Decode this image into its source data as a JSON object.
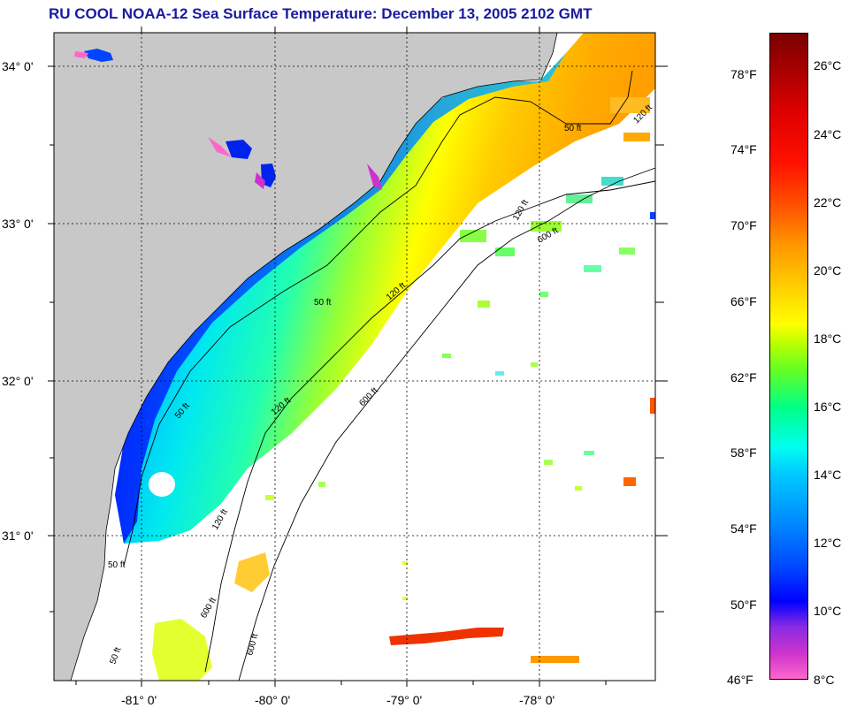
{
  "title": "RU COOL  NOAA-12  Sea Surface Temperature:  December 13, 2005 2102 GMT",
  "latitude_ticks": [
    "34° 0'",
    "33° 0'",
    "32° 0'",
    "31° 0'"
  ],
  "longitude_ticks": [
    "-81° 0'",
    "-80° 0'",
    "-79° 0'",
    "-78° 0'"
  ],
  "contour_labels": [
    "50 ft",
    "50 ft",
    "50 ft",
    "50 ft",
    "50 ft",
    "120 ft",
    "120 ft",
    "120 ft",
    "120 ft",
    "120 ft",
    "600 ft",
    "600 ft",
    "600 ft",
    "600 ft"
  ],
  "colorbar": {
    "fahrenheit": [
      "78°F",
      "74°F",
      "70°F",
      "66°F",
      "62°F",
      "58°F",
      "54°F",
      "50°F",
      "46°F"
    ],
    "celsius": [
      "26°C",
      "24°C",
      "22°C",
      "20°C",
      "18°C",
      "16°C",
      "14°C",
      "12°C",
      "10°C",
      "8°C"
    ]
  },
  "colors": {
    "land": "#c8c8c8",
    "title": "#1a1aa0",
    "ocean_nodata": "#ffffff"
  }
}
